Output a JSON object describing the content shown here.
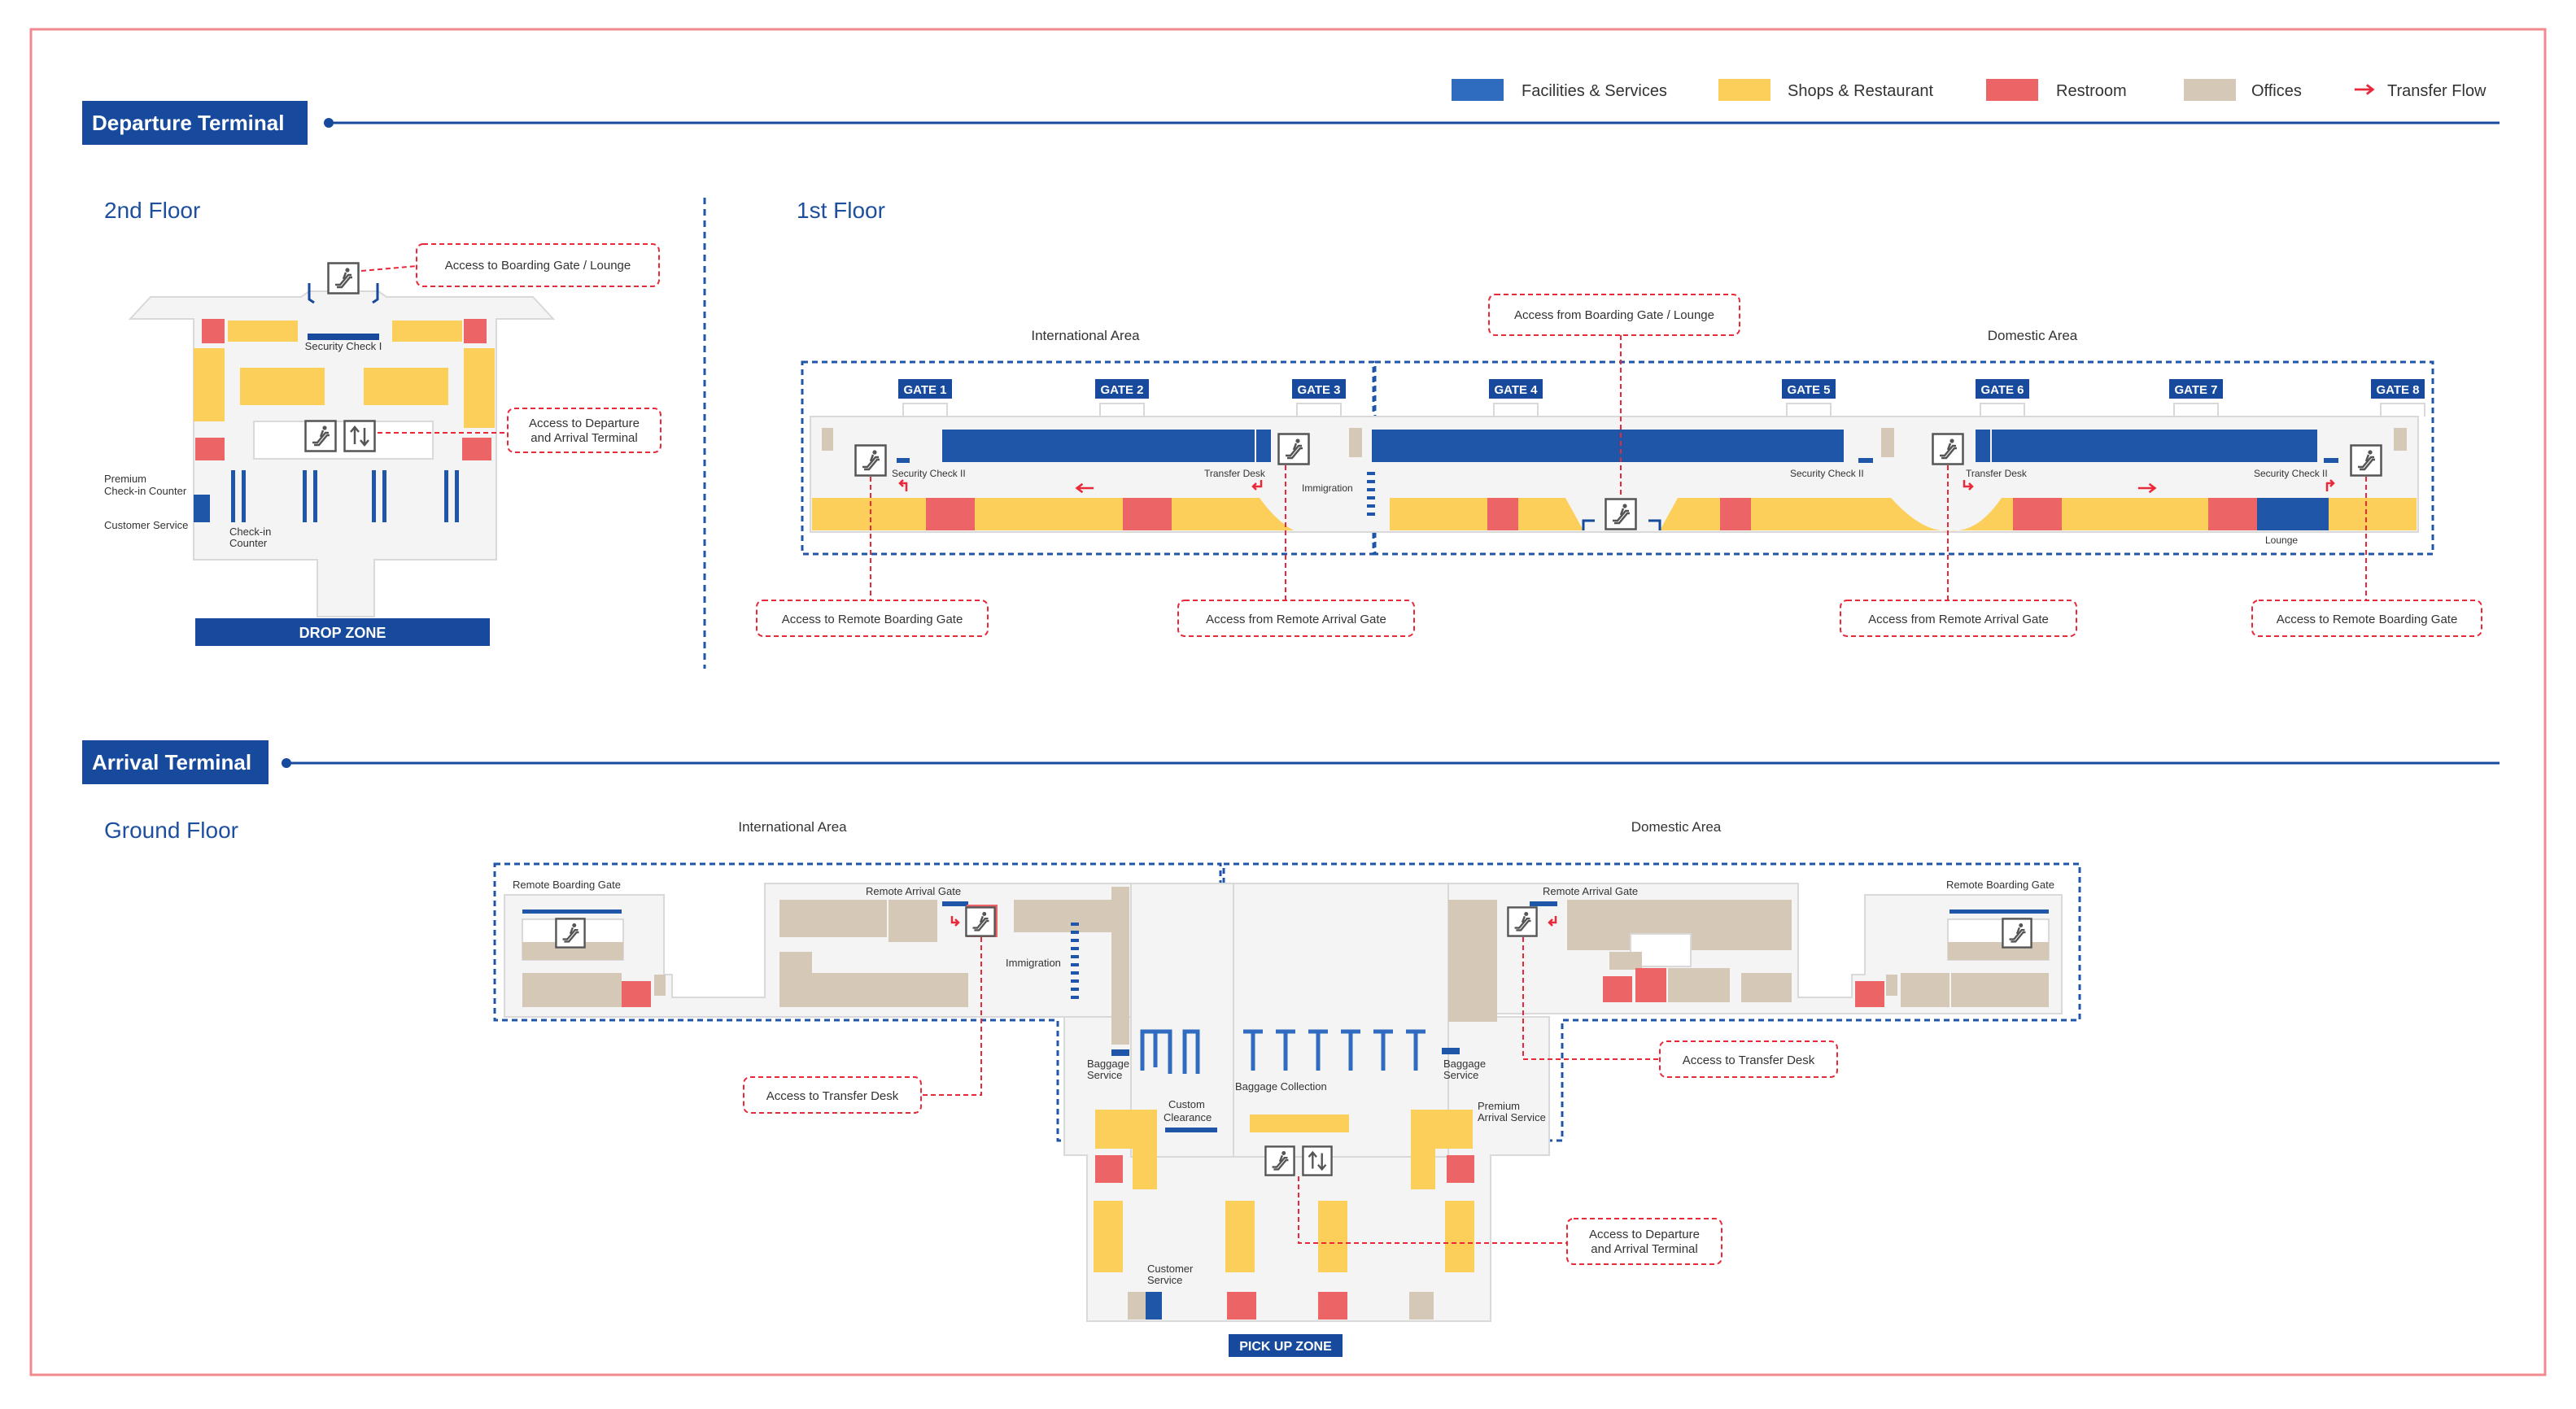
{
  "colors": {
    "facilities": "#1f56a8",
    "shops": "#fbcf5a",
    "restroom": "#ec6465",
    "offices": "#d6c8b6",
    "transfer": "#e8293a",
    "navy": "#174a9c",
    "floor": "#f4f4f4",
    "wall": "#d9d9d9",
    "frame": "#f08a8f"
  },
  "legend": [
    {
      "key": "facilities",
      "label": "Facilities & Services"
    },
    {
      "key": "shops",
      "label": "Shops & Restaurant"
    },
    {
      "key": "restroom",
      "label": "Restroom"
    },
    {
      "key": "offices",
      "label": "Offices"
    },
    {
      "key": "transfer",
      "label": "Transfer Flow"
    }
  ],
  "departure": {
    "title": "Departure Terminal",
    "floor2": {
      "title": "2nd Floor",
      "security": "Security Check I",
      "premium": [
        "Premium",
        "Check-in Counter"
      ],
      "customer_service": "Customer Service",
      "checkin": [
        "Check-in",
        "Counter"
      ],
      "drop_zone": "DROP ZONE",
      "callout_boarding": "Access to Boarding Gate / Lounge",
      "callout_terminal": [
        "Access to Departure",
        "and Arrival Terminal"
      ]
    },
    "floor1": {
      "title": "1st Floor",
      "international_area": "International Area",
      "domestic_area": "Domestic Area",
      "gates": [
        "GATE 1",
        "GATE 2",
        "GATE 3",
        "GATE 4",
        "GATE 5",
        "GATE 6",
        "GATE 7",
        "GATE 8"
      ],
      "security_2a": "Security Check II",
      "transfer_desk_a": "Transfer Desk",
      "immigration": "Immigration",
      "security_2b": "Security Check II",
      "transfer_desk_b": "Transfer Desk",
      "security_2c": "Security Check II",
      "lounge": "Lounge",
      "callout_boarding": "Access from Boarding Gate / Lounge",
      "callout_remote_boarding_a": "Access to Remote Boarding Gate",
      "callout_remote_arrival_a": "Access from Remote Arrival Gate",
      "callout_remote_arrival_b": "Access from Remote Arrival Gate",
      "callout_remote_boarding_b": "Access to Remote Boarding Gate"
    }
  },
  "arrival": {
    "title": "Arrival Terminal",
    "ground": {
      "title": "Ground Floor",
      "international_area": "International Area",
      "domestic_area": "Domestic Area",
      "remote_boarding_a": "Remote Boarding Gate",
      "remote_arrival_a": "Remote Arrival Gate",
      "immigration": "Immigration",
      "baggage_service_a": [
        "Baggage",
        "Service"
      ],
      "custom_clearance": [
        "Custom",
        "Clearance"
      ],
      "baggage_collection": "Baggage Collection",
      "baggage_service_b": [
        "Baggage",
        "Service"
      ],
      "premium_arrival": [
        "Premium",
        "Arrival Service"
      ],
      "remote_arrival_b": "Remote Arrival Gate",
      "remote_boarding_b": "Remote Boarding Gate",
      "customer_service": [
        "Customer",
        "Service"
      ],
      "pick_up_zone": "PICK UP ZONE",
      "callout_transfer_a": "Access to Transfer Desk",
      "callout_transfer_b": "Access to Transfer Desk",
      "callout_terminal": [
        "Access to Departure",
        "and Arrival Terminal"
      ]
    }
  }
}
